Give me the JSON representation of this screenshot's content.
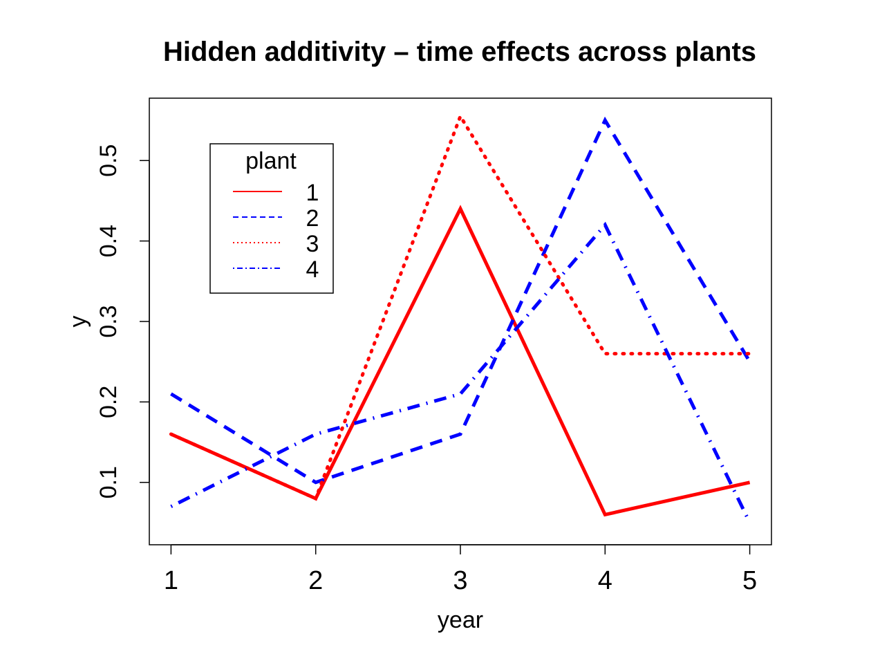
{
  "chart_data": {
    "type": "line",
    "title": "Hidden additivity – time effects across plants",
    "xlabel": "year",
    "ylabel": "y",
    "x": [
      1,
      2,
      3,
      4,
      5
    ],
    "x_ticks": [
      "1",
      "2",
      "3",
      "4",
      "5"
    ],
    "y_ticks": [
      "0.1",
      "0.2",
      "0.3",
      "0.4",
      "0.5"
    ],
    "xlim": [
      0.85,
      5.15
    ],
    "ylim": [
      0.0225,
      0.5775
    ],
    "grid": false,
    "legend": {
      "title": "plant",
      "placement": "top-left"
    },
    "series": [
      {
        "name": "1",
        "values": [
          0.16,
          0.08,
          0.44,
          0.06,
          0.1
        ],
        "color": "#ff0000",
        "style": "solid"
      },
      {
        "name": "2",
        "values": [
          0.21,
          0.1,
          0.16,
          0.55,
          0.25
        ],
        "color": "#0000ff",
        "style": "dashed"
      },
      {
        "name": "3",
        "values": [
          0.16,
          0.08,
          0.555,
          0.26,
          0.26
        ],
        "color": "#ff0000",
        "style": "dotted"
      },
      {
        "name": "4",
        "values": [
          0.07,
          0.16,
          0.21,
          0.42,
          0.05
        ],
        "color": "#0000ff",
        "style": "dotdash"
      }
    ]
  }
}
